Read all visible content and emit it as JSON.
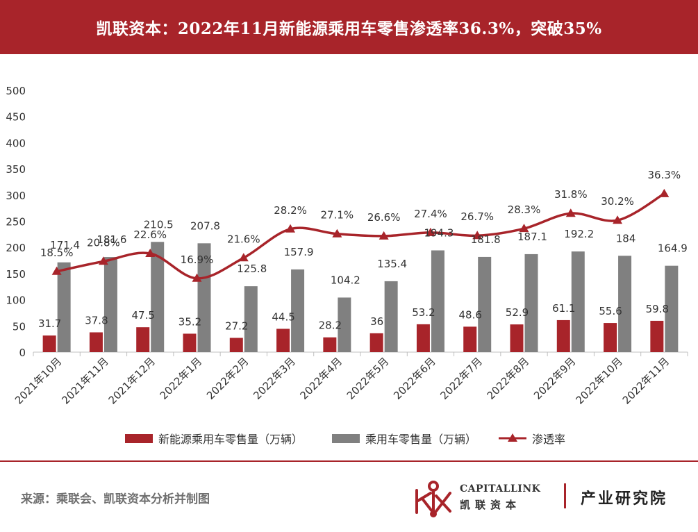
{
  "header": {
    "title": "凯联资本：2022年11月新能源乘用车零售渗透率36.3%，突破35%"
  },
  "footer": {
    "source": "来源：乘联会、凯联资本分析并制图",
    "brand_en": "CAPITALLINK",
    "brand_cn": "凯联资本",
    "brand_dept": "产业研究院"
  },
  "colors": {
    "nev": "#a8242a",
    "total": "#808080",
    "rate": "#a8242a",
    "header_bg": "#a8242a"
  },
  "chart_data": {
    "type": "bar",
    "categories": [
      "2021年10月",
      "2021年11月",
      "2021年12月",
      "2022年1月",
      "2022年2月",
      "2022年3月",
      "2022年4月",
      "2022年5月",
      "2022年6月",
      "2022年7月",
      "2022年8月",
      "2022年9月",
      "2022年10月",
      "2022年11月"
    ],
    "series": [
      {
        "name": "新能源乘用车零售量（万辆）",
        "type": "bar",
        "values": [
          31.7,
          37.8,
          47.5,
          35.2,
          27.2,
          44.5,
          28.2,
          36,
          53.2,
          48.6,
          52.9,
          61.1,
          55.6,
          59.8
        ],
        "labels": [
          "31.7",
          "37.8",
          "47.5",
          "35.2",
          "27.2",
          "44.5",
          "28.2",
          "36",
          "53.2",
          "48.6",
          "52.9",
          "61.1",
          "55.6",
          "59.8"
        ]
      },
      {
        "name": "乘用车零售量（万辆）",
        "type": "bar",
        "values": [
          171.4,
          181.6,
          210.5,
          207.8,
          125.8,
          157.9,
          104.2,
          135.4,
          194.3,
          181.8,
          187.1,
          192.2,
          184,
          164.9
        ],
        "labels": [
          "171.4",
          "181.6",
          "210.5",
          "207.8",
          "125.8",
          "157.9",
          "104.2",
          "135.4",
          "194.3",
          "181.8",
          "187.1",
          "192.2",
          "184",
          "164.9"
        ]
      },
      {
        "name": "渗透率",
        "type": "line",
        "unit": "%",
        "values": [
          18.5,
          20.8,
          22.6,
          16.9,
          21.6,
          28.2,
          27.1,
          26.6,
          27.4,
          26.7,
          28.3,
          31.8,
          30.2,
          36.3
        ],
        "labels": [
          "18.5%",
          "20.8%",
          "22.6%",
          "16.9%",
          "21.6%",
          "28.2%",
          "27.1%",
          "26.6%",
          "27.4%",
          "26.7%",
          "28.3%",
          "31.8%",
          "30.2%",
          "36.3%"
        ]
      }
    ],
    "y_ticks": [
      "0",
      "50",
      "100",
      "150",
      "200",
      "250",
      "300",
      "350",
      "400",
      "450",
      "500"
    ],
    "ylim": [
      0,
      500
    ],
    "grid": false,
    "legend_position": "bottom"
  }
}
